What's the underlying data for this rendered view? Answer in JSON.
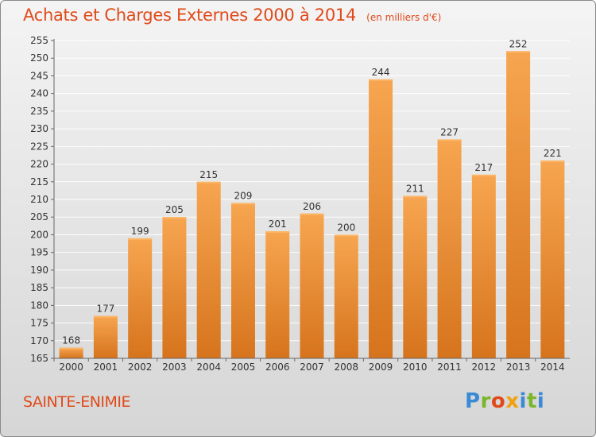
{
  "header": {
    "title": "Achats et Charges Externes 2000 à 2014",
    "subtitle": "(en milliers d'€)"
  },
  "footer": {
    "city": "SAINTE-ENIMIE",
    "logo": "Proxiti"
  },
  "colors": {
    "title": "#e04a1a",
    "bar_light": "#f7a24f",
    "bar_dark": "#d9781f",
    "axis_text": "#333333"
  },
  "chart_data": {
    "type": "bar",
    "title": "Achats et Charges Externes 2000 à 2014",
    "subtitle": "(en milliers d'€)",
    "categories": [
      "2000",
      "2001",
      "2002",
      "2003",
      "2004",
      "2005",
      "2006",
      "2007",
      "2008",
      "2009",
      "2010",
      "2011",
      "2012",
      "2013",
      "2014"
    ],
    "values": [
      168,
      177,
      199,
      205,
      215,
      209,
      201,
      206,
      200,
      244,
      211,
      227,
      217,
      252,
      221
    ],
    "ylim": [
      165,
      255
    ],
    "yticks": [
      165,
      170,
      175,
      180,
      185,
      190,
      195,
      200,
      205,
      210,
      215,
      220,
      225,
      230,
      235,
      240,
      245,
      250,
      255
    ],
    "grid": true,
    "legend": "none"
  }
}
